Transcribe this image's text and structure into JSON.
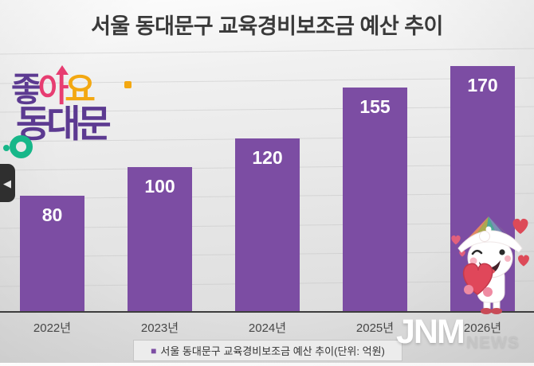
{
  "header": {
    "title": "서울 동대문구 교육경비보조금 예산 추이"
  },
  "logo": {
    "word1_char1": "좋",
    "word1_char2": "아",
    "word1_char3": "요",
    "word2": "동대문",
    "colors": {
      "purple": "#5c3a91",
      "pink": "#e73d71",
      "yellow": "#f3a812",
      "teal": "#17b789"
    }
  },
  "chart_data": {
    "type": "bar",
    "title": "서울 동대문구 교육경비보조금 예산 추이",
    "categories": [
      "2022년",
      "2023년",
      "2024년",
      "2025년",
      "2026년"
    ],
    "values": [
      80,
      100,
      120,
      155,
      170
    ],
    "unit": "억원",
    "xlabel": "",
    "ylabel": "",
    "ylim": [
      0,
      180
    ],
    "grid_step": 20,
    "grid": "on",
    "bar_color": "#7c4da3",
    "value_label_color": "#ffffff",
    "legend_position": "bottom",
    "legend_label": "서울 동대문구 교육경비보조금 예산 추이(단위: 억원)"
  },
  "legend": {
    "label": "서울 동대문구 교육경비보조금 예산 추이(단위: 억원)"
  },
  "icons": {
    "legend_marker": "■",
    "back_arrow": "◀",
    "mascot": "winking-character-with-rainbow-hat-holding-heart"
  },
  "watermark": {
    "brand": "JNM",
    "sub": "NEWS"
  }
}
